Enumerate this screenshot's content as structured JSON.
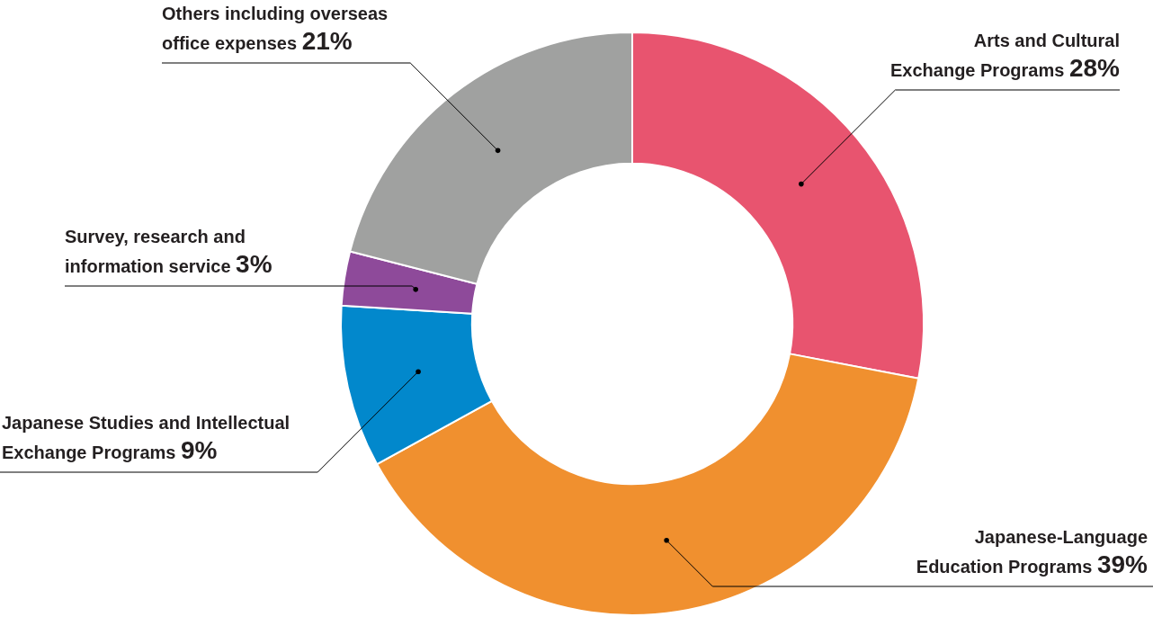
{
  "chart_data": {
    "type": "doughnut",
    "categories": [
      "Arts and Cultural Exchange Programs",
      "Japanese-Language Education Programs",
      "Japanese Studies and Intellectual Exchange Programs",
      "Survey, research and information service",
      "Others including overseas office expenses"
    ],
    "values": [
      28,
      39,
      9,
      3,
      21
    ],
    "value_labels": [
      "28%",
      "39%",
      "9%",
      "3%",
      "21%"
    ],
    "colors": [
      "#e8546f",
      "#f0902f",
      "#0288cc",
      "#8e4a9a",
      "#a0a1a0"
    ],
    "data_labels": true
  }
}
